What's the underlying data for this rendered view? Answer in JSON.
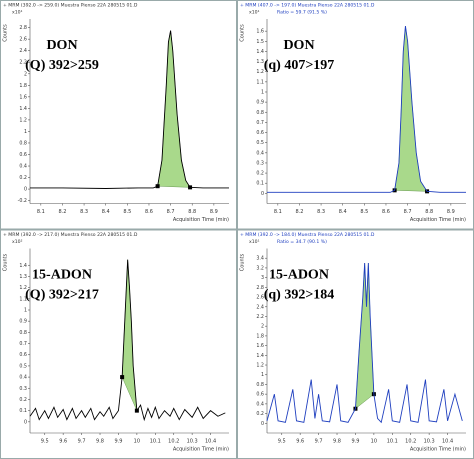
{
  "chart_data": [
    {
      "type": "line",
      "title": "+ MRM (392.0 -> 259.0) Muestra Pienso 22A 280515 01.D",
      "y_multiplier": "x10¹",
      "y_label": "Counts",
      "x_label": "Acquisition Time (min)",
      "annotations": [
        "DON",
        "(Q) 392>259"
      ],
      "color": "#000000",
      "fill_color": "#a9d98b",
      "x": [
        8.05,
        8.2,
        8.4,
        8.55,
        8.62,
        8.64,
        8.66,
        8.68,
        8.69,
        8.7,
        8.71,
        8.73,
        8.75,
        8.77,
        8.79,
        8.85,
        8.97
      ],
      "values": [
        0.02,
        0.02,
        0.01,
        0.02,
        0.02,
        0.05,
        0.5,
        1.8,
        2.55,
        2.75,
        2.4,
        1.3,
        0.5,
        0.15,
        0.03,
        0.02,
        0.02
      ],
      "integration_range": [
        8.64,
        8.79
      ],
      "xlim": [
        8.05,
        8.97
      ],
      "ylim": [
        -0.25,
        2.95
      ],
      "xticks": [
        8.1,
        8.2,
        8.3,
        8.4,
        8.5,
        8.6,
        8.7,
        8.8,
        8.9
      ],
      "yticks": [
        -0.2,
        0,
        0.2,
        0.4,
        0.6,
        0.8,
        1,
        1.2,
        1.4,
        1.6,
        1.8,
        2,
        2.2,
        2.4,
        2.6,
        2.8
      ]
    },
    {
      "type": "line",
      "title": "+ MRM (407.0 -> 197.0) Muestra Pienso 22A 280515 01.D",
      "subtitle": "Ratio = 59.7 (91.5 %)",
      "y_multiplier": "x10¹",
      "y_label": "Counts",
      "x_label": "Acquisition Time (min)",
      "annotations": [
        "DON",
        "(q) 407>197"
      ],
      "color": "#1f3fbf",
      "fill_color": "#a9d98b",
      "x": [
        8.05,
        8.2,
        8.4,
        8.55,
        8.62,
        8.64,
        8.66,
        8.67,
        8.68,
        8.69,
        8.7,
        8.72,
        8.74,
        8.76,
        8.79,
        8.85,
        8.97
      ],
      "values": [
        0.01,
        0.01,
        0.01,
        0.01,
        0.01,
        0.03,
        0.3,
        0.8,
        1.4,
        1.65,
        1.5,
        0.9,
        0.4,
        0.12,
        0.02,
        0.01,
        0.01
      ],
      "integration_range": [
        8.64,
        8.79
      ],
      "xlim": [
        8.05,
        8.97
      ],
      "ylim": [
        -0.1,
        1.72
      ],
      "xticks": [
        8.1,
        8.2,
        8.3,
        8.4,
        8.5,
        8.6,
        8.7,
        8.8,
        8.9
      ],
      "yticks": [
        0,
        0.1,
        0.2,
        0.3,
        0.4,
        0.5,
        0.6,
        0.7,
        0.8,
        0.9,
        1,
        1.1,
        1.2,
        1.3,
        1.4,
        1.5,
        1.6
      ]
    },
    {
      "type": "line",
      "title": "+ MRM (392.0 -> 217.0) Muestra Pienso 22A 280515 01.D",
      "y_multiplier": "x10²",
      "y_label": "Counts",
      "x_label": "Acquisition Time (min)",
      "annotations": [
        "15-ADON",
        "(Q) 392>217"
      ],
      "color": "#000000",
      "fill_color": "#a9d98b",
      "x": [
        9.42,
        9.45,
        9.47,
        9.5,
        9.52,
        9.55,
        9.57,
        9.6,
        9.62,
        9.65,
        9.67,
        9.7,
        9.72,
        9.75,
        9.77,
        9.8,
        9.82,
        9.85,
        9.87,
        9.9,
        9.92,
        9.94,
        9.95,
        9.96,
        9.97,
        9.98,
        10.0,
        10.02,
        10.04,
        10.06,
        10.08,
        10.1,
        10.12,
        10.15,
        10.18,
        10.2,
        10.23,
        10.26,
        10.3,
        10.33,
        10.36,
        10.4,
        10.44,
        10.48
      ],
      "values": [
        0.05,
        0.12,
        0.02,
        0.1,
        0.03,
        0.13,
        0.04,
        0.11,
        0.02,
        0.12,
        0.03,
        0.1,
        0.04,
        0.12,
        0.02,
        0.09,
        0.05,
        0.13,
        0.03,
        0.1,
        0.4,
        1.1,
        1.45,
        1.2,
        0.9,
        0.5,
        0.1,
        0.15,
        0.02,
        0.12,
        0.04,
        0.13,
        0.03,
        0.1,
        0.05,
        0.12,
        0.02,
        0.11,
        0.04,
        0.13,
        0.03,
        0.1,
        0.05,
        0.08
      ],
      "integration_range": [
        9.92,
        10.0
      ],
      "xlim": [
        9.42,
        10.5
      ],
      "ylim": [
        -0.1,
        1.55
      ],
      "xticks": [
        9.5,
        9.6,
        9.7,
        9.8,
        9.9,
        10,
        10.1,
        10.2,
        10.3,
        10.4
      ],
      "yticks": [
        0,
        0.1,
        0.2,
        0.3,
        0.4,
        0.5,
        0.6,
        0.7,
        0.8,
        0.9,
        1,
        1.1,
        1.2,
        1.3,
        1.4
      ]
    },
    {
      "type": "line",
      "title": "+ MRM (392.0 -> 184.0) Muestra Pienso 22A 280515 01.D",
      "subtitle": "Ratio = 34.7 (90.1 %)",
      "y_multiplier": "x10¹",
      "y_label": "Counts",
      "x_label": "Acquisition Time (min)",
      "annotations": [
        "15-ADON",
        "(q) 392>184"
      ],
      "color": "#1f3fbf",
      "fill_color": "#a9d98b",
      "x": [
        9.42,
        9.46,
        9.48,
        9.52,
        9.56,
        9.58,
        9.62,
        9.66,
        9.68,
        9.7,
        9.72,
        9.76,
        9.8,
        9.82,
        9.86,
        9.9,
        9.92,
        9.94,
        9.95,
        9.96,
        9.97,
        9.98,
        9.99,
        10.0,
        10.02,
        10.04,
        10.08,
        10.1,
        10.14,
        10.18,
        10.2,
        10.24,
        10.28,
        10.3,
        10.34,
        10.38,
        10.4,
        10.44,
        10.48
      ],
      "values": [
        0.05,
        0.6,
        0.05,
        0.02,
        0.7,
        0.05,
        0.02,
        0.9,
        0.1,
        0.6,
        0.05,
        0.03,
        0.8,
        0.05,
        0.02,
        0.3,
        1.5,
        2.6,
        3.3,
        2.4,
        3.3,
        2.2,
        1.4,
        0.6,
        0.1,
        0.02,
        0.7,
        0.05,
        0.02,
        0.8,
        0.05,
        0.02,
        0.9,
        0.05,
        0.03,
        0.7,
        0.05,
        0.6,
        0.05
      ],
      "integration_range": [
        9.9,
        10.0
      ],
      "xlim": [
        9.42,
        10.5
      ],
      "ylim": [
        -0.2,
        3.6
      ],
      "xticks": [
        9.5,
        9.6,
        9.7,
        9.8,
        9.9,
        10,
        10.1,
        10.2,
        10.3,
        10.4
      ],
      "yticks": [
        0,
        0.2,
        0.4,
        0.6,
        0.8,
        1,
        1.2,
        1.4,
        1.6,
        1.8,
        2,
        2.2,
        2.4,
        2.6,
        2.8,
        3,
        3.2,
        3.4
      ]
    }
  ]
}
